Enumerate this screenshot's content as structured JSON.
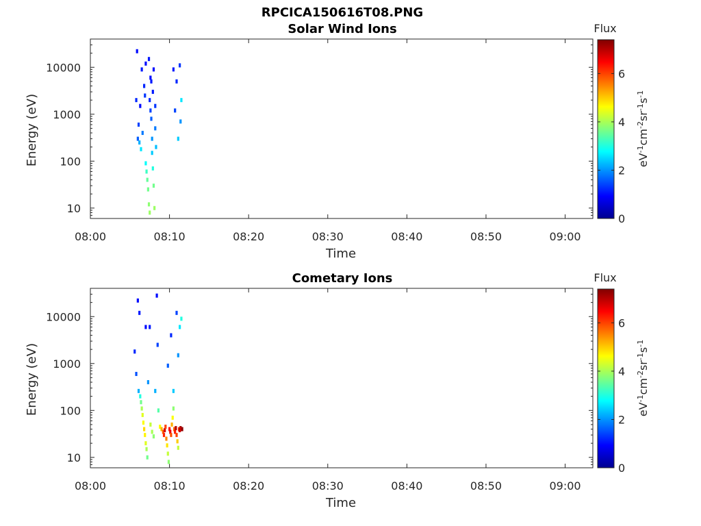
{
  "figure_title": "RPCICA150616T08.PNG",
  "chart_data": [
    {
      "type": "heatmap",
      "title": "Solar Wind Ions",
      "xlabel": "Time",
      "ylabel": "Energy (eV)",
      "x_ticks": [
        "08:00",
        "08:10",
        "08:20",
        "08:30",
        "08:40",
        "08:50",
        "09:00"
      ],
      "xlim_minutes": [
        0,
        63.5
      ],
      "y_scale": "log",
      "y_ticks": [
        "10",
        "100",
        "1000",
        "10000"
      ],
      "ylim": [
        6,
        40000
      ],
      "colorbar": {
        "title": "Flux",
        "label": "eV-1cm-2sr-1s-1",
        "ticks": [
          "0",
          "2",
          "4",
          "6"
        ],
        "range": [
          0,
          7.4
        ]
      },
      "points": [
        [
          5.8,
          2000,
          1.2
        ],
        [
          5.9,
          22000,
          1.0
        ],
        [
          6.0,
          300,
          1.6
        ],
        [
          6.1,
          600,
          1.4
        ],
        [
          6.2,
          250,
          2.2
        ],
        [
          6.3,
          1500,
          1.0
        ],
        [
          6.4,
          180,
          2.6
        ],
        [
          6.5,
          9000,
          1.1
        ],
        [
          6.6,
          400,
          1.8
        ],
        [
          6.8,
          4000,
          1.2
        ],
        [
          6.9,
          2500,
          1.3
        ],
        [
          7.0,
          12000,
          1.0
        ],
        [
          7.0,
          90,
          2.8
        ],
        [
          7.1,
          60,
          3.2
        ],
        [
          7.2,
          40,
          3.5
        ],
        [
          7.3,
          25,
          3.6
        ],
        [
          7.4,
          15000,
          1.1
        ],
        [
          7.4,
          12,
          3.8
        ],
        [
          7.5,
          8,
          3.9
        ],
        [
          7.6,
          6000,
          1.0
        ],
        [
          7.6,
          1200,
          1.4
        ],
        [
          7.7,
          800,
          1.6
        ],
        [
          7.8,
          300,
          2.0
        ],
        [
          7.8,
          150,
          2.4
        ],
        [
          7.9,
          3000,
          1.1
        ],
        [
          7.9,
          70,
          3.0
        ],
        [
          8.0,
          9000,
          1.0
        ],
        [
          8.0,
          30,
          3.6
        ],
        [
          8.1,
          10,
          3.9
        ],
        [
          7.5,
          2000,
          1.2
        ],
        [
          7.7,
          5000,
          1.1
        ],
        [
          8.2,
          1500,
          1.3
        ],
        [
          8.2,
          500,
          1.8
        ],
        [
          8.3,
          200,
          2.3
        ],
        [
          10.5,
          9000,
          1.1
        ],
        [
          10.7,
          1200,
          1.4
        ],
        [
          10.9,
          5000,
          1.2
        ],
        [
          11.1,
          300,
          2.4
        ],
        [
          11.3,
          11000,
          1.3
        ],
        [
          11.4,
          700,
          2.0
        ],
        [
          11.5,
          2000,
          2.6
        ]
      ]
    },
    {
      "type": "heatmap",
      "title": "Cometary Ions",
      "xlabel": "Time",
      "ylabel": "Energy (eV)",
      "x_ticks": [
        "08:00",
        "08:10",
        "08:20",
        "08:30",
        "08:40",
        "08:50",
        "09:00"
      ],
      "xlim_minutes": [
        0,
        63.5
      ],
      "y_scale": "log",
      "y_ticks": [
        "10",
        "100",
        "1000",
        "10000"
      ],
      "ylim": [
        6,
        40000
      ],
      "colorbar": {
        "title": "Flux",
        "label": "eV-1cm-2sr-1s-1",
        "ticks": [
          "0",
          "2",
          "4",
          "6"
        ],
        "range": [
          0,
          7.4
        ]
      },
      "points": [
        [
          5.6,
          1800,
          1.2
        ],
        [
          5.8,
          600,
          1.5
        ],
        [
          6.0,
          22000,
          1.0
        ],
        [
          6.1,
          260,
          2.2
        ],
        [
          6.2,
          12000,
          1.1
        ],
        [
          6.3,
          200,
          3.0
        ],
        [
          6.4,
          150,
          3.6
        ],
        [
          6.5,
          110,
          4.0
        ],
        [
          6.6,
          80,
          4.4
        ],
        [
          6.7,
          55,
          4.6
        ],
        [
          6.8,
          40,
          4.9
        ],
        [
          6.9,
          30,
          4.7
        ],
        [
          7.0,
          20,
          4.4
        ],
        [
          7.1,
          15,
          4.0
        ],
        [
          7.2,
          10,
          3.6
        ],
        [
          7.0,
          6000,
          1.0
        ],
        [
          7.3,
          400,
          2.0
        ],
        [
          7.5,
          6000,
          1.1
        ],
        [
          7.6,
          50,
          4.2
        ],
        [
          7.8,
          35,
          4.0
        ],
        [
          8.0,
          28,
          3.8
        ],
        [
          8.2,
          260,
          2.2
        ],
        [
          8.4,
          28000,
          1.0
        ],
        [
          8.5,
          2500,
          1.4
        ],
        [
          8.6,
          100,
          3.4
        ],
        [
          8.8,
          45,
          4.6
        ],
        [
          9.0,
          40,
          5.2
        ],
        [
          9.2,
          35,
          5.8
        ],
        [
          9.3,
          30,
          6.2
        ],
        [
          9.4,
          38,
          6.8
        ],
        [
          9.5,
          45,
          6.0
        ],
        [
          9.6,
          25,
          5.5
        ],
        [
          9.7,
          18,
          4.8
        ],
        [
          9.8,
          12,
          4.2
        ],
        [
          9.9,
          8,
          3.8
        ],
        [
          10.0,
          40,
          6.4
        ],
        [
          10.1,
          35,
          6.6
        ],
        [
          10.2,
          30,
          5.9
        ],
        [
          10.3,
          50,
          5.2
        ],
        [
          10.4,
          70,
          4.6
        ],
        [
          10.5,
          110,
          3.8
        ],
        [
          10.6,
          40,
          5.7
        ],
        [
          10.7,
          35,
          6.3
        ],
        [
          10.8,
          42,
          7.0
        ],
        [
          10.9,
          30,
          6.0
        ],
        [
          11.0,
          22,
          5.0
        ],
        [
          11.1,
          16,
          4.2
        ],
        [
          11.2,
          40,
          6.1
        ],
        [
          11.3,
          38,
          6.9
        ],
        [
          11.4,
          42,
          7.2
        ],
        [
          11.5,
          40,
          6.6
        ],
        [
          11.6,
          40,
          7.3
        ],
        [
          9.8,
          900,
          1.6
        ],
        [
          10.2,
          4000,
          1.2
        ],
        [
          10.5,
          260,
          2.4
        ],
        [
          10.9,
          12000,
          1.4
        ],
        [
          11.1,
          1500,
          2.0
        ],
        [
          11.3,
          6000,
          2.6
        ],
        [
          11.5,
          9000,
          3.0
        ]
      ]
    }
  ]
}
